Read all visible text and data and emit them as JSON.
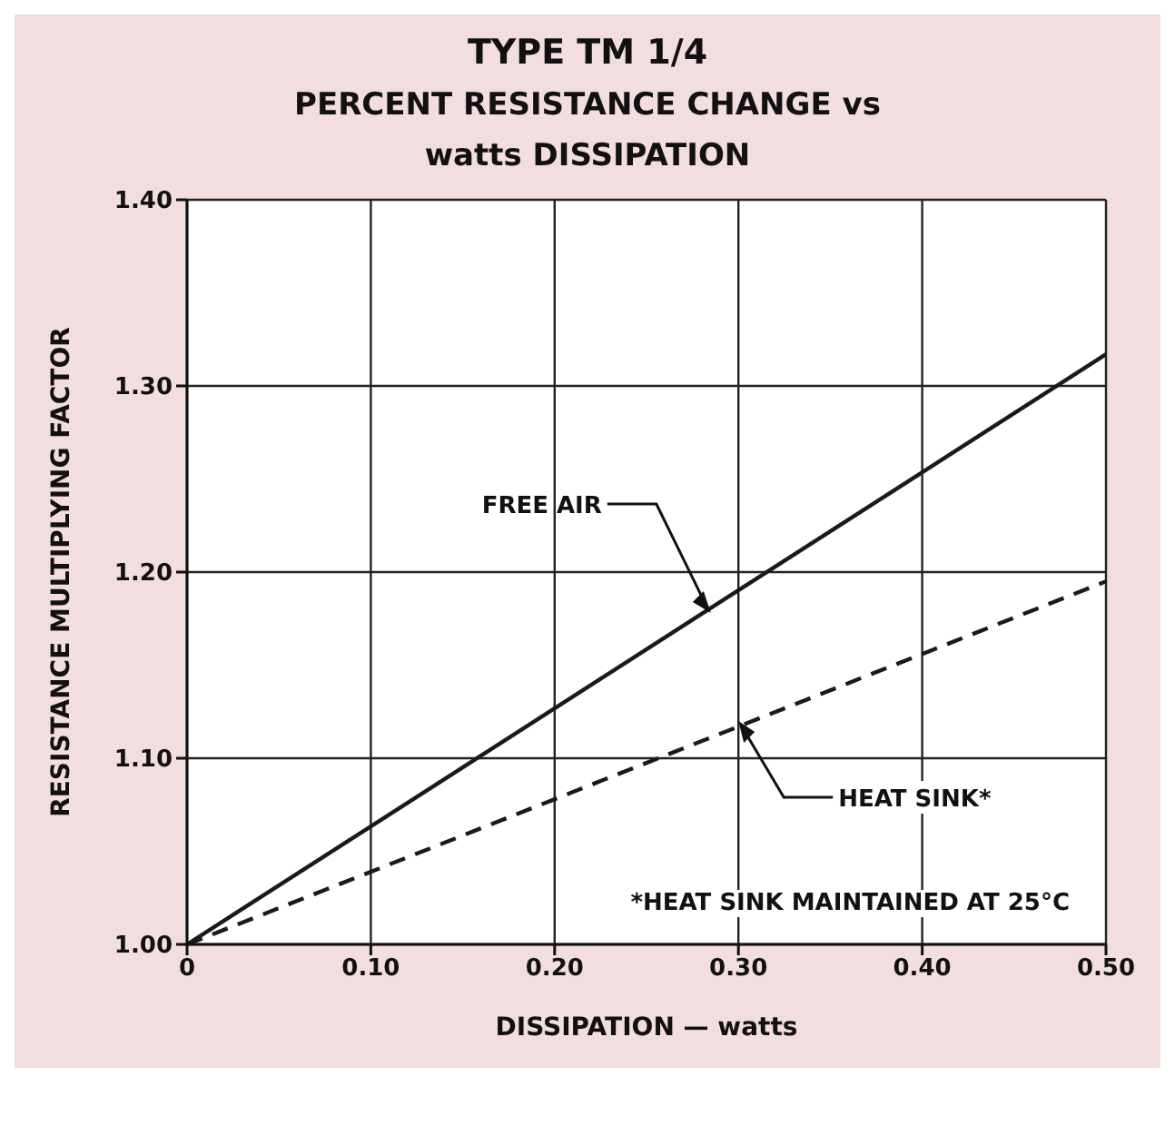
{
  "chart_data": {
    "type": "line",
    "title": "TYPE TM 1/4",
    "subtitle": "PERCENT RESISTANCE CHANGE vs watts DISSIPATION",
    "xlabel": "DISSIPATION — watts",
    "ylabel": "RESISTANCE MULTIPLYING FACTOR",
    "x": [
      0,
      0.5
    ],
    "series": [
      {
        "color": "#1a1a1a",
        "values": [
          1.0,
          1.317
        ],
        "line_style": "solid"
      },
      {
        "color": "#1a1a1a",
        "values": [
          1.0,
          1.195
        ],
        "line_style": "dashed"
      }
    ],
    "xlim": [
      0,
      0.5
    ],
    "xticks": [
      0,
      {
        "value": 0.1,
        "label": "0.10"
      },
      {
        "value": 0.2,
        "label": "0.20"
      },
      {
        "value": 0.3,
        "label": "0.30"
      },
      {
        "value": 0.4,
        "label": "0.40"
      },
      {
        "value": 0.5,
        "label": "0.50"
      }
    ],
    "ylim": [
      1.0,
      1.4
    ],
    "yticks": [
      {
        "value": 1.0,
        "label": "1.00"
      },
      {
        "value": 1.1,
        "label": "1.10"
      },
      {
        "value": 1.2,
        "label": "1.20"
      },
      {
        "value": 1.3,
        "label": "1.30"
      },
      {
        "value": 1.4,
        "label": "1.40"
      }
    ],
    "grid": true,
    "marker": "none",
    "annotations": [
      {
        "text": "FREE AIR",
        "x": 0.285,
        "y": 1.178
      },
      {
        "text": "HEAT SINK*",
        "x": 0.3,
        "y": 1.12
      },
      "*HEAT SINK MAINTAINED AT 25°C"
    ]
  }
}
